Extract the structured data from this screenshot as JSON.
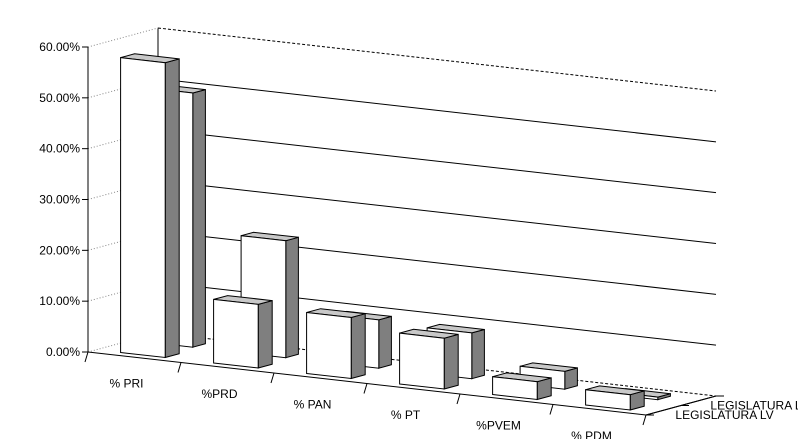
{
  "chart_data": {
    "type": "bar",
    "categories": [
      "% PRI",
      "%PRD",
      "% PAN",
      "% PT",
      "%PVEM",
      "% PDM"
    ],
    "series": [
      {
        "name": "LEGISLATURA  LV",
        "values": [
          58.0,
          12.5,
          12.0,
          10.0,
          3.5,
          3.0
        ]
      },
      {
        "name": "LEGISLATURA  LVI",
        "values": [
          50.0,
          23.0,
          9.5,
          9.0,
          3.5,
          0.5
        ]
      }
    ],
    "ylim": [
      0,
      60
    ],
    "yticks": [
      "0.00%",
      "10.00%",
      "20.00%",
      "30.00%",
      "40.00%",
      "50.00%",
      "60.00%"
    ],
    "colors": {
      "front": "#ffffff",
      "top": "#c8c8c8",
      "side": "#7f7f7f",
      "outline": "#000000",
      "wall": "#000000"
    }
  }
}
